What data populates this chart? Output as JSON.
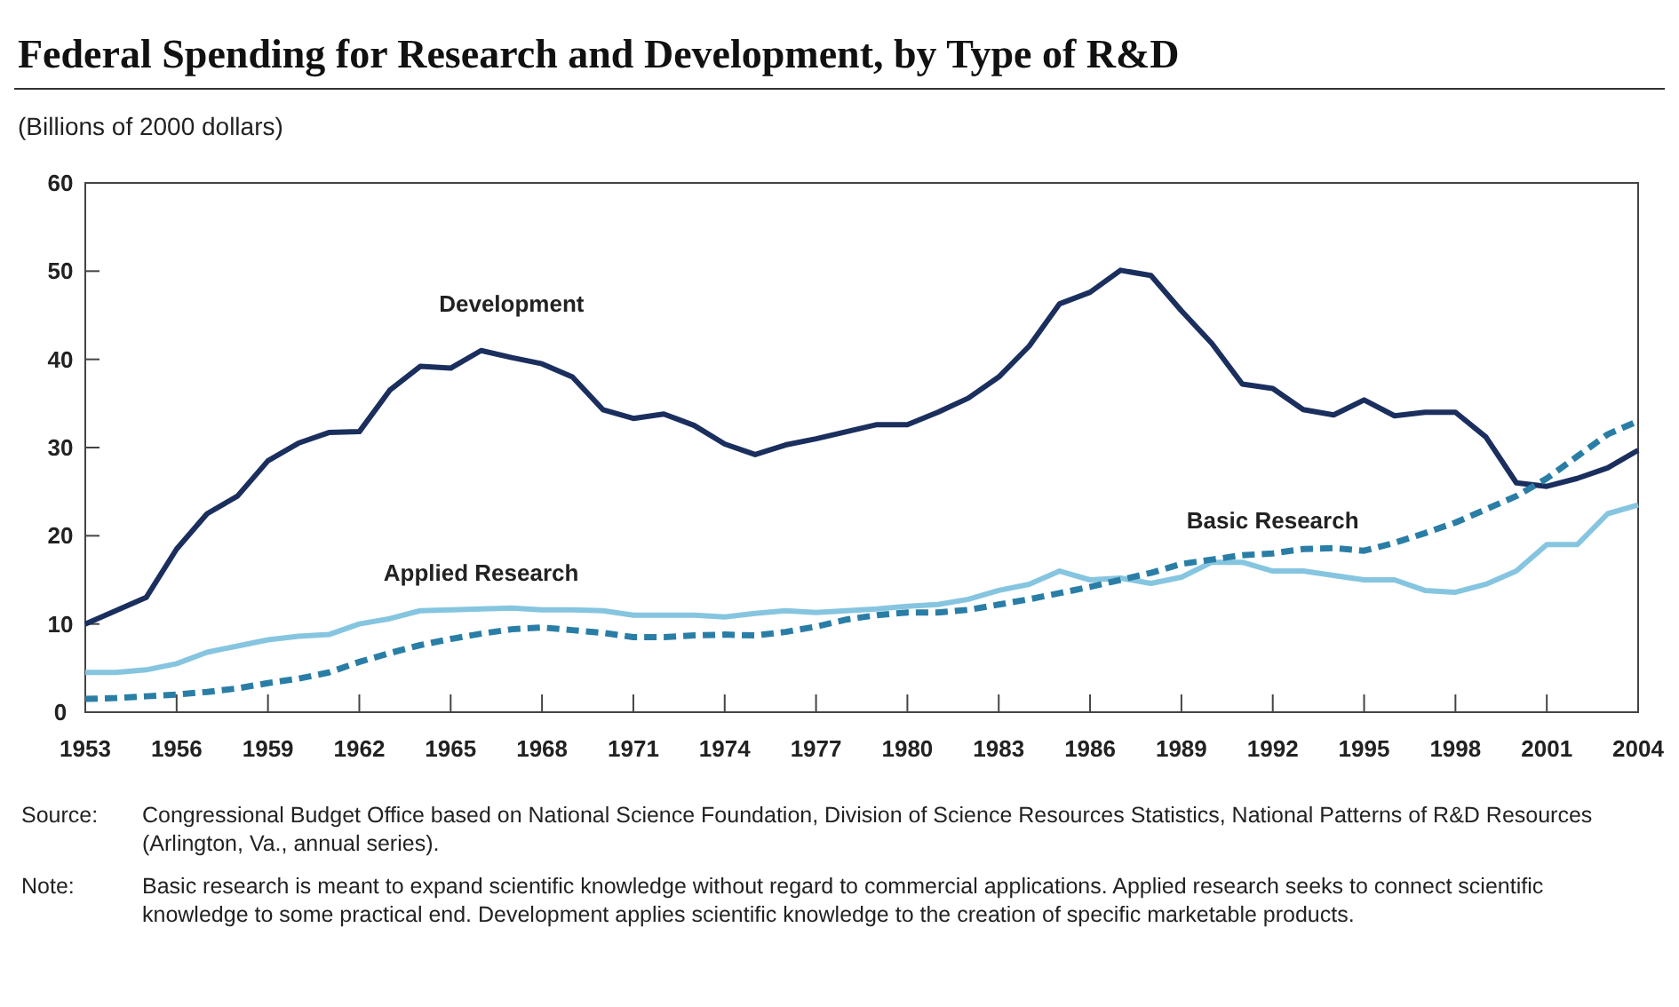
{
  "chart_data": {
    "type": "line",
    "title": "Federal Spending for Research and Development, by Type of R&D",
    "subtitle": "(Billions of 2000 dollars)",
    "x": [
      1953,
      1954,
      1955,
      1956,
      1957,
      1958,
      1959,
      1960,
      1961,
      1962,
      1963,
      1964,
      1965,
      1966,
      1967,
      1968,
      1969,
      1970,
      1971,
      1972,
      1973,
      1974,
      1975,
      1976,
      1977,
      1978,
      1979,
      1980,
      1981,
      1982,
      1983,
      1984,
      1985,
      1986,
      1987,
      1988,
      1989,
      1990,
      1991,
      1992,
      1993,
      1994,
      1995,
      1996,
      1997,
      1998,
      1999,
      2000,
      2001,
      2002,
      2003,
      2004
    ],
    "series": [
      {
        "name": "Development",
        "color": "#1b2f5e",
        "line_style": "solid",
        "values": [
          10,
          11.5,
          13,
          18.5,
          22.5,
          24.5,
          28.5,
          30.5,
          31.7,
          31.8,
          36.5,
          39.2,
          39,
          41,
          40.2,
          39.5,
          38,
          34.3,
          33.3,
          33.8,
          32.5,
          30.4,
          29.2,
          30.3,
          31,
          31.8,
          32.6,
          32.6,
          34,
          35.6,
          38,
          41.5,
          46.3,
          47.6,
          50.1,
          49.5,
          45.5,
          41.8,
          37.2,
          36.7,
          34.3,
          33.7,
          35.4,
          33.6,
          34,
          34,
          31.2,
          26,
          25.6,
          26.5,
          27.7,
          29.7
        ]
      },
      {
        "name": "Applied Research",
        "color": "#86c5e0",
        "line_style": "solid",
        "values": [
          4.5,
          4.5,
          4.8,
          5.5,
          6.8,
          7.5,
          8.2,
          8.6,
          8.8,
          10,
          10.6,
          11.5,
          11.6,
          11.7,
          11.8,
          11.6,
          11.6,
          11.5,
          11,
          11,
          11,
          10.8,
          11.2,
          11.5,
          11.3,
          11.5,
          11.7,
          12,
          12.2,
          12.8,
          13.8,
          14.5,
          16,
          15,
          15.2,
          14.6,
          15.3,
          17,
          17,
          16,
          16,
          15.5,
          15,
          15,
          13.8,
          13.6,
          14.5,
          16,
          19,
          19,
          22.5,
          23.5
        ]
      },
      {
        "name": "Basic Research",
        "color": "#2a7ea6",
        "line_style": "dashed",
        "values": [
          1.5,
          1.6,
          1.8,
          2,
          2.3,
          2.7,
          3.3,
          3.8,
          4.5,
          5.7,
          6.7,
          7.6,
          8.3,
          8.9,
          9.4,
          9.6,
          9.3,
          9,
          8.5,
          8.5,
          8.7,
          8.8,
          8.7,
          9.1,
          9.7,
          10.5,
          11,
          11.3,
          11.3,
          11.6,
          12.2,
          12.8,
          13.5,
          14.2,
          15,
          15.8,
          16.8,
          17.3,
          17.8,
          18,
          18.5,
          18.6,
          18.3,
          19.2,
          20.3,
          21.5,
          23,
          24.5,
          26.5,
          29,
          31.5,
          33
        ]
      }
    ],
    "xlim": [
      1953,
      2004
    ],
    "xticks": [
      1953,
      1956,
      1959,
      1962,
      1965,
      1968,
      1971,
      1974,
      1977,
      1980,
      1983,
      1986,
      1989,
      1992,
      1995,
      1998,
      2001,
      2004
    ],
    "ylim": [
      0,
      60
    ],
    "yticks": [
      0,
      10,
      20,
      30,
      40,
      50,
      60
    ],
    "grid": false,
    "legend": false,
    "marker": "none",
    "annotations": [
      "Source: Congressional Budget Office based on National Science Foundation, Division of Science Resources Statistics, National Patterns of R&D Resources (Arlington, Va., annual series).",
      "Note: Basic research is meant to expand scientific knowledge without regard to commercial applications. Applied research seeks to connect scientific knowledge to some practical end. Development applies scientific knowledge to the creation of specific marketable products."
    ]
  }
}
